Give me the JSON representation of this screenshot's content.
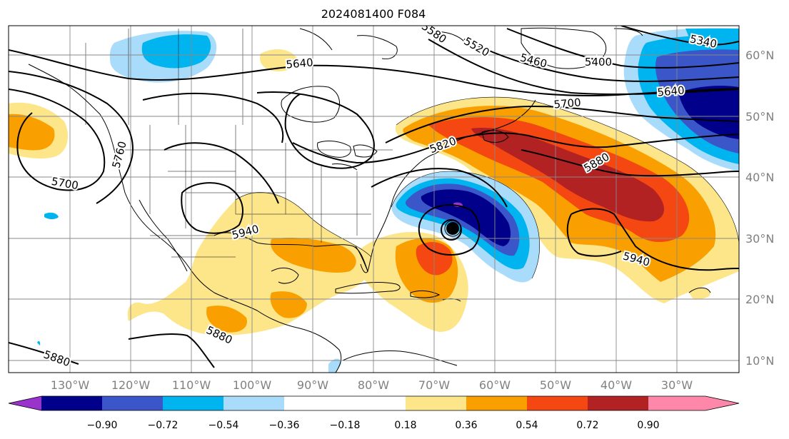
{
  "title": "2024081400 F084",
  "lat_labels": [
    "10°N",
    "20°N",
    "30°N",
    "40°N",
    "50°N",
    "60°N"
  ],
  "lon_labels": [
    "130°W",
    "120°W",
    "110°W",
    "100°W",
    "90°W",
    "80°W",
    "70°W",
    "60°W",
    "50°W",
    "40°W",
    "30°W"
  ],
  "colorbar": {
    "ticks": [
      "−0.90",
      "−0.72",
      "−0.54",
      "−0.36",
      "−0.18",
      "0.18",
      "0.36",
      "0.54",
      "0.72",
      "0.90"
    ],
    "colors": {
      "under": "#9933cc",
      "c1": "#00008b",
      "c2": "#3a56c8",
      "c3": "#00b4f0",
      "c4": "#a8dcfa",
      "neutral": "#ffffff",
      "c6": "#fde68a",
      "c7": "#f9a000",
      "c8": "#f44711",
      "c9": "#b22222",
      "over": "#ff88aa"
    }
  },
  "contour_labels": [
    "5340",
    "5400",
    "5460",
    "5520",
    "5580",
    "5640",
    "5640",
    "5700",
    "5700",
    "5760",
    "5820",
    "5880",
    "5880",
    "5880",
    "5940",
    "5940"
  ],
  "center_label": ""
}
